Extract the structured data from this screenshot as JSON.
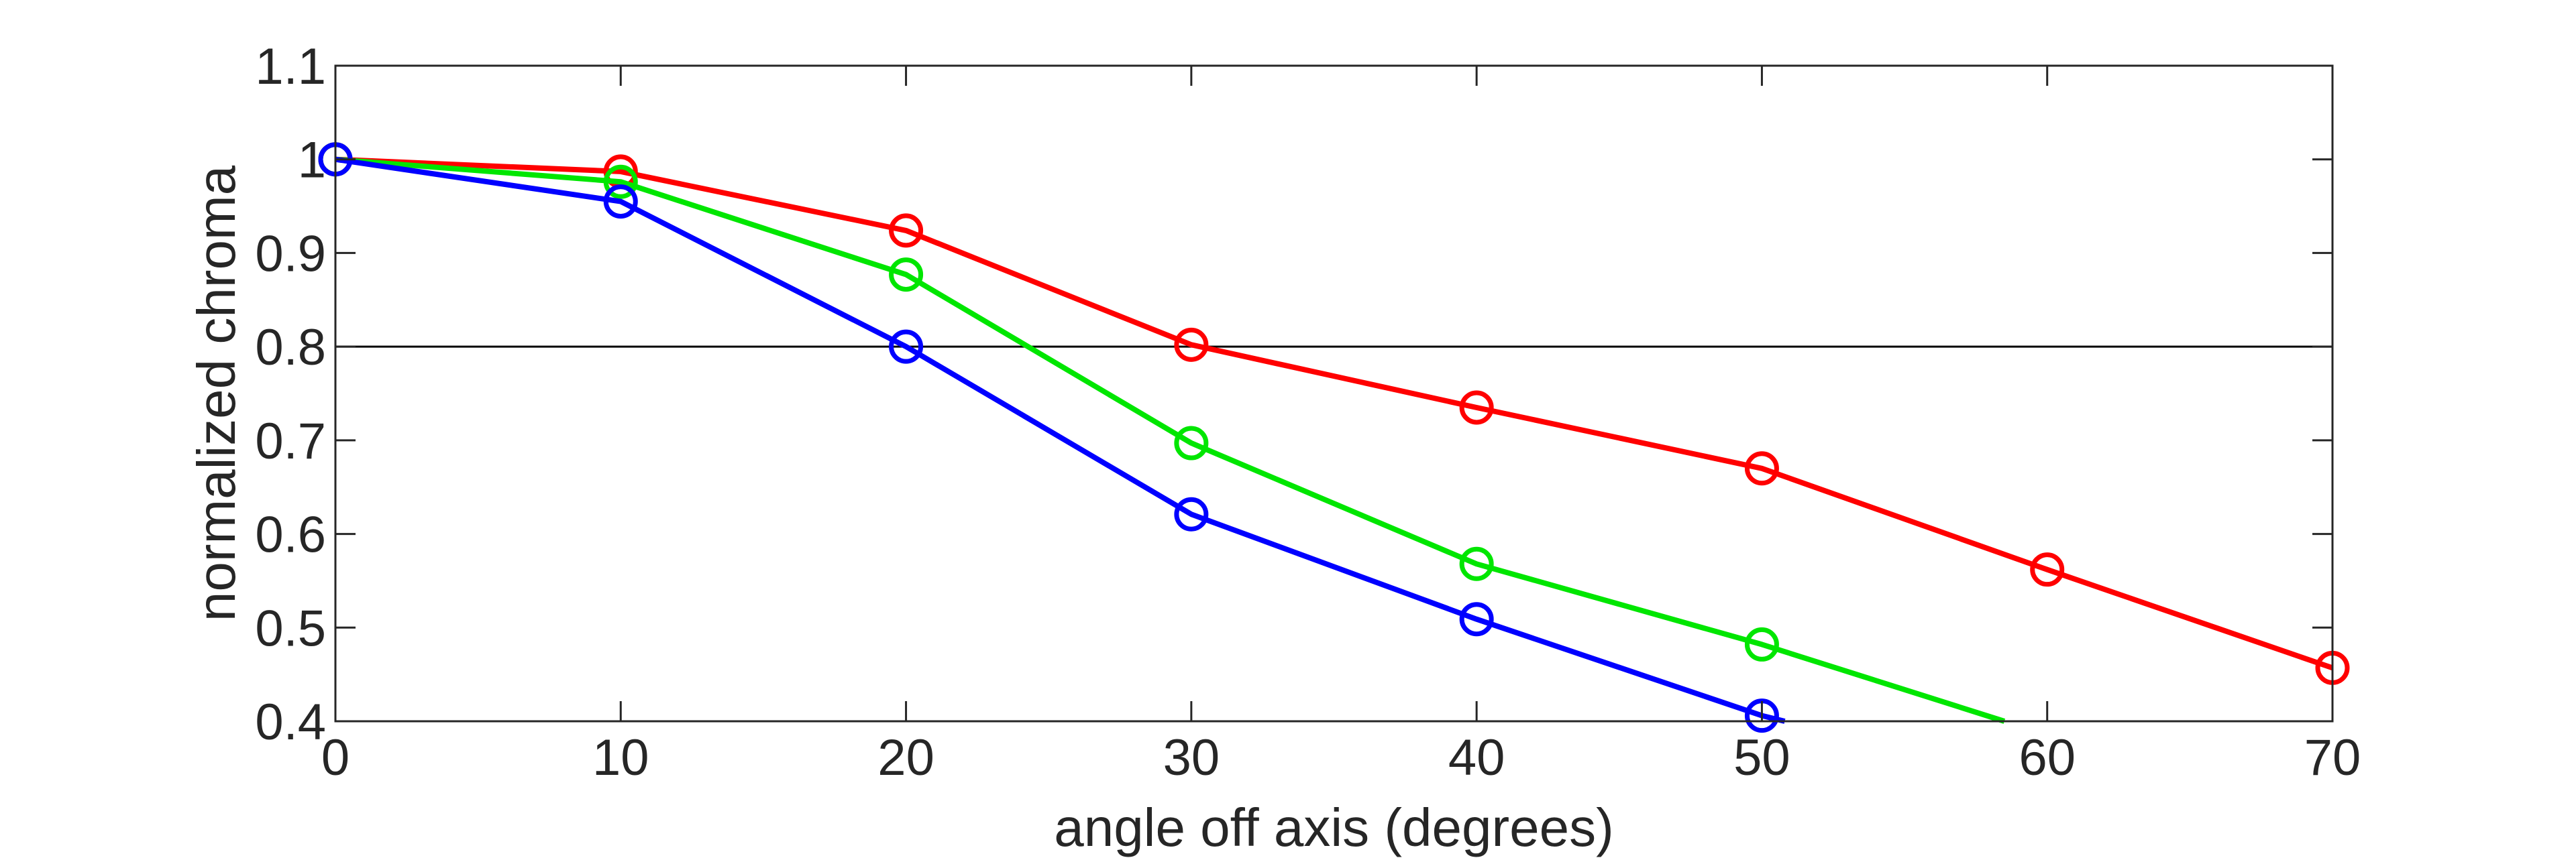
{
  "chart_data": {
    "type": "line",
    "title": "",
    "xlabel": "angle off axis (degrees)",
    "ylabel": "normalized chroma",
    "xlim": [
      0,
      70
    ],
    "ylim": [
      0.4,
      1.1
    ],
    "xticks": [
      "0",
      "10",
      "20",
      "30",
      "40",
      "50",
      "60",
      "70"
    ],
    "yticks": [
      "0.4",
      "0.5",
      "0.6",
      "0.7",
      "0.8",
      "0.9",
      "1",
      "1.1"
    ],
    "grid": false,
    "legend": "none",
    "reference_line": {
      "y": 0.8,
      "color": "#000000"
    },
    "series": [
      {
        "color": "#ff0000",
        "x": [
          0,
          10,
          20,
          30,
          40,
          50,
          60,
          70
        ],
        "y": [
          1.0,
          0.987,
          0.924,
          0.802,
          0.735,
          0.67,
          0.562,
          0.457
        ]
      },
      {
        "color": "#00e600",
        "x": [
          0,
          10,
          20,
          30,
          40,
          50,
          58.5
        ],
        "y": [
          1.0,
          0.976,
          0.877,
          0.697,
          0.568,
          0.482,
          0.4
        ],
        "markers_on": [
          0,
          1,
          2,
          3,
          4,
          5
        ]
      },
      {
        "color": "#0000ff",
        "x": [
          0,
          10,
          20,
          30,
          40,
          50,
          50.8
        ],
        "y": [
          1.0,
          0.955,
          0.8,
          0.621,
          0.509,
          0.406,
          0.4
        ],
        "markers_on": [
          0,
          1,
          2,
          3,
          4,
          5
        ]
      }
    ]
  }
}
